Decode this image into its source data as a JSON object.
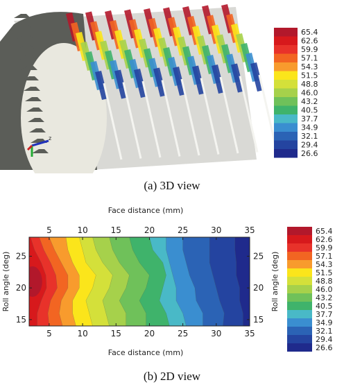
{
  "figure_a": {
    "caption": "(a) 3D view",
    "axis_glyph": "z",
    "colorbar": {
      "labels": [
        "65.4",
        "62.6",
        "59.9",
        "57.1",
        "54.3",
        "51.5",
        "48.8",
        "46.0",
        "43.2",
        "40.5",
        "37.7",
        "34.9",
        "32.1",
        "29.4",
        "26.6"
      ]
    }
  },
  "figure_b": {
    "caption": "(b) 2D view",
    "colorbar": {
      "labels": [
        "65.4",
        "62.6",
        "59.9",
        "57.1",
        "54.3",
        "51.5",
        "48.8",
        "46.0",
        "43.2",
        "40.5",
        "37.7",
        "34.9",
        "32.1",
        "29.4",
        "26.6"
      ]
    }
  },
  "palette": [
    "#b2182b",
    "#d7191c",
    "#e8322a",
    "#f26522",
    "#f89b2d",
    "#fbe51b",
    "#d4e03a",
    "#a6d14b",
    "#6fc15a",
    "#3fb36b",
    "#49b9c7",
    "#3a8ed0",
    "#2b63b5",
    "#2444a0",
    "#1f2a8c"
  ],
  "chart_data": {
    "type": "heatmap",
    "title": "",
    "xlabel": "Face distance (mm)",
    "ylabel": "Roll angle (deg)",
    "xlim": [
      2,
      35
    ],
    "ylim": [
      14,
      28
    ],
    "x_ticks": [
      5,
      10,
      15,
      20,
      25,
      30,
      35
    ],
    "y_ticks": [
      15,
      20,
      25
    ],
    "levels": [
      26.6,
      29.4,
      32.1,
      34.9,
      37.7,
      40.5,
      43.2,
      46.0,
      48.8,
      51.5,
      54.3,
      57.1,
      59.9,
      62.6,
      65.4
    ],
    "peak": {
      "x": 2.5,
      "y": 21,
      "value": 65.4
    },
    "trend": "values decrease from about 65 near face distance 2 mm to about 27 near 35 mm"
  }
}
